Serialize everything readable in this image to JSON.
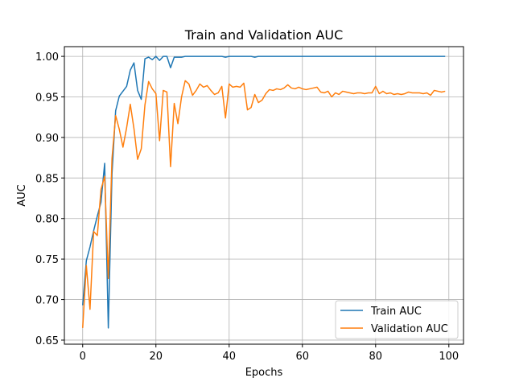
{
  "chart_data": {
    "type": "line",
    "title": "Train and Validation AUC",
    "xlabel": "Epochs",
    "ylabel": "AUC",
    "xlim": [
      -5,
      104
    ],
    "ylim": [
      0.645,
      1.012
    ],
    "xticks": [
      0,
      20,
      40,
      60,
      80,
      100
    ],
    "yticks": [
      0.65,
      0.7,
      0.75,
      0.8,
      0.85,
      0.9,
      0.95,
      1.0
    ],
    "ytick_labels": [
      "0.65",
      "0.70",
      "0.75",
      "0.80",
      "0.85",
      "0.90",
      "0.95",
      "1.00"
    ],
    "grid": true,
    "legend_position": "lower right",
    "series": [
      {
        "name": "Train AUC",
        "color": "#1f77b4",
        "x": [
          0,
          1,
          2,
          3,
          4,
          5,
          6,
          7,
          8,
          9,
          10,
          11,
          12,
          13,
          14,
          15,
          16,
          17,
          18,
          19,
          20,
          21,
          22,
          23,
          24,
          25,
          26,
          27,
          28,
          29,
          30,
          31,
          32,
          33,
          34,
          35,
          36,
          37,
          38,
          39,
          40,
          41,
          42,
          43,
          44,
          45,
          46,
          47,
          48,
          49,
          50,
          51,
          52,
          53,
          54,
          55,
          56,
          57,
          58,
          59,
          60,
          61,
          62,
          63,
          64,
          65,
          66,
          67,
          68,
          69,
          70,
          71,
          72,
          73,
          74,
          75,
          76,
          77,
          78,
          79,
          80,
          81,
          82,
          83,
          84,
          85,
          86,
          87,
          88,
          89,
          90,
          91,
          92,
          93,
          94,
          95,
          96,
          97,
          98,
          99
        ],
        "values": [
          0.693,
          0.748,
          0.765,
          0.785,
          0.803,
          0.82,
          0.868,
          0.665,
          0.855,
          0.933,
          0.951,
          0.957,
          0.963,
          0.983,
          0.992,
          0.958,
          0.947,
          0.997,
          0.999,
          0.996,
          1.0,
          0.995,
          1.0,
          1.0,
          0.986,
          0.999,
          0.999,
          0.999,
          1.0,
          1.0,
          1.0,
          1.0,
          1.0,
          1.0,
          1.0,
          1.0,
          1.0,
          1.0,
          1.0,
          0.999,
          1.0,
          1.0,
          1.0,
          1.0,
          1.0,
          1.0,
          1.0,
          0.999,
          1.0,
          1.0,
          1.0,
          1.0,
          1.0,
          1.0,
          1.0,
          1.0,
          1.0,
          1.0,
          1.0,
          1.0,
          1.0,
          1.0,
          1.0,
          1.0,
          1.0,
          1.0,
          1.0,
          1.0,
          1.0,
          1.0,
          1.0,
          1.0,
          1.0,
          1.0,
          1.0,
          1.0,
          1.0,
          1.0,
          1.0,
          1.0,
          1.0,
          1.0,
          1.0,
          1.0,
          1.0,
          1.0,
          1.0,
          1.0,
          1.0,
          1.0,
          1.0,
          1.0,
          1.0,
          1.0,
          1.0,
          1.0,
          1.0,
          1.0,
          1.0,
          1.0
        ]
      },
      {
        "name": "Validation AUC",
        "color": "#ff7f0e",
        "x": [
          0,
          1,
          2,
          3,
          4,
          5,
          6,
          7,
          8,
          9,
          10,
          11,
          12,
          13,
          14,
          15,
          16,
          17,
          18,
          19,
          20,
          21,
          22,
          23,
          24,
          25,
          26,
          27,
          28,
          29,
          30,
          31,
          32,
          33,
          34,
          35,
          36,
          37,
          38,
          39,
          40,
          41,
          42,
          43,
          44,
          45,
          46,
          47,
          48,
          49,
          50,
          51,
          52,
          53,
          54,
          55,
          56,
          57,
          58,
          59,
          60,
          61,
          62,
          63,
          64,
          65,
          66,
          67,
          68,
          69,
          70,
          71,
          72,
          73,
          74,
          75,
          76,
          77,
          78,
          79,
          80,
          81,
          82,
          83,
          84,
          85,
          86,
          87,
          88,
          89,
          90,
          91,
          92,
          93,
          94,
          95,
          96,
          97,
          98,
          99
        ],
        "values": [
          0.665,
          0.742,
          0.688,
          0.784,
          0.779,
          0.836,
          0.852,
          0.726,
          0.874,
          0.927,
          0.91,
          0.888,
          0.912,
          0.941,
          0.911,
          0.873,
          0.886,
          0.94,
          0.969,
          0.96,
          0.954,
          0.896,
          0.958,
          0.956,
          0.864,
          0.942,
          0.917,
          0.95,
          0.97,
          0.966,
          0.952,
          0.958,
          0.966,
          0.962,
          0.964,
          0.958,
          0.953,
          0.955,
          0.963,
          0.924,
          0.966,
          0.962,
          0.963,
          0.962,
          0.967,
          0.934,
          0.937,
          0.953,
          0.943,
          0.946,
          0.954,
          0.959,
          0.958,
          0.96,
          0.959,
          0.961,
          0.965,
          0.961,
          0.96,
          0.962,
          0.96,
          0.959,
          0.96,
          0.961,
          0.962,
          0.956,
          0.955,
          0.957,
          0.95,
          0.955,
          0.953,
          0.957,
          0.956,
          0.955,
          0.954,
          0.955,
          0.955,
          0.954,
          0.955,
          0.955,
          0.963,
          0.954,
          0.957,
          0.954,
          0.955,
          0.953,
          0.954,
          0.953,
          0.954,
          0.956,
          0.955,
          0.955,
          0.955,
          0.954,
          0.955,
          0.952,
          0.958,
          0.957,
          0.956,
          0.957
        ]
      }
    ]
  }
}
